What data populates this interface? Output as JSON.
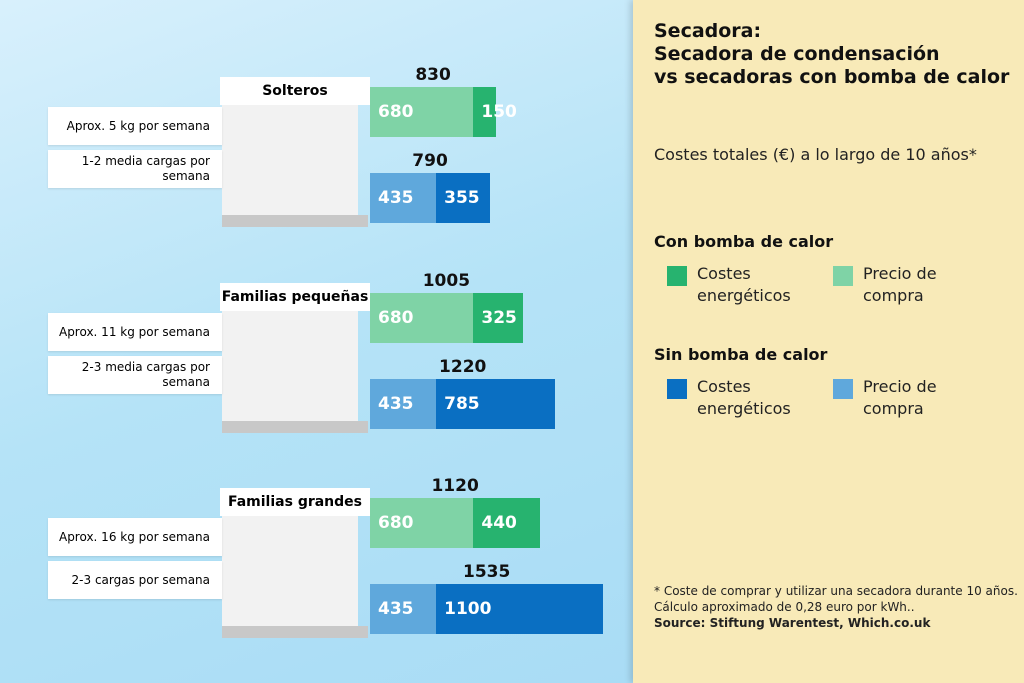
{
  "chart_data": {
    "type": "bar",
    "orientation": "horizontal",
    "stacked": true,
    "title": "Secadora:\nSecadora de condensación\nvs secadoras con bomba de calor",
    "subtitle": "Costes totales (€) a lo largo de 10 años*",
    "categories": [
      "Solteros",
      "Familias pequeñas",
      "Familias grandes"
    ],
    "notes": [
      [
        "Aprox. 5 kg por semana",
        "1-2 media cargas por semana"
      ],
      [
        "Aprox. 11 kg por semana",
        "2-3 media cargas por semana"
      ],
      [
        "Aprox. 16 kg por semana",
        "2-3 cargas por semana"
      ]
    ],
    "stacks": [
      {
        "name": "Con bomba de calor",
        "totals": [
          830,
          1005,
          1120
        ],
        "series": [
          {
            "name": "Precio de compra",
            "color": "#7fd3a6",
            "values": [
              680,
              680,
              680
            ]
          },
          {
            "name": "Costes energéticos",
            "color": "#27b36f",
            "values": [
              150,
              325,
              440
            ]
          }
        ]
      },
      {
        "name": "Sin bomba de calor",
        "totals": [
          790,
          1220,
          1535
        ],
        "series": [
          {
            "name": "Precio de compra",
            "color": "#5fa8dc",
            "values": [
              435,
              435,
              435
            ]
          },
          {
            "name": "Costes energéticos",
            "color": "#0a6fc2",
            "values": [
              355,
              785,
              1100
            ]
          }
        ]
      }
    ],
    "footnotes": [
      "* Coste de comprar y utilizar una secadora durante 10 años.",
      "Cálculo aproximado de 0,28 euro por kWh..",
      "Source: Stiftung Warentest, Which.co.uk"
    ]
  }
}
